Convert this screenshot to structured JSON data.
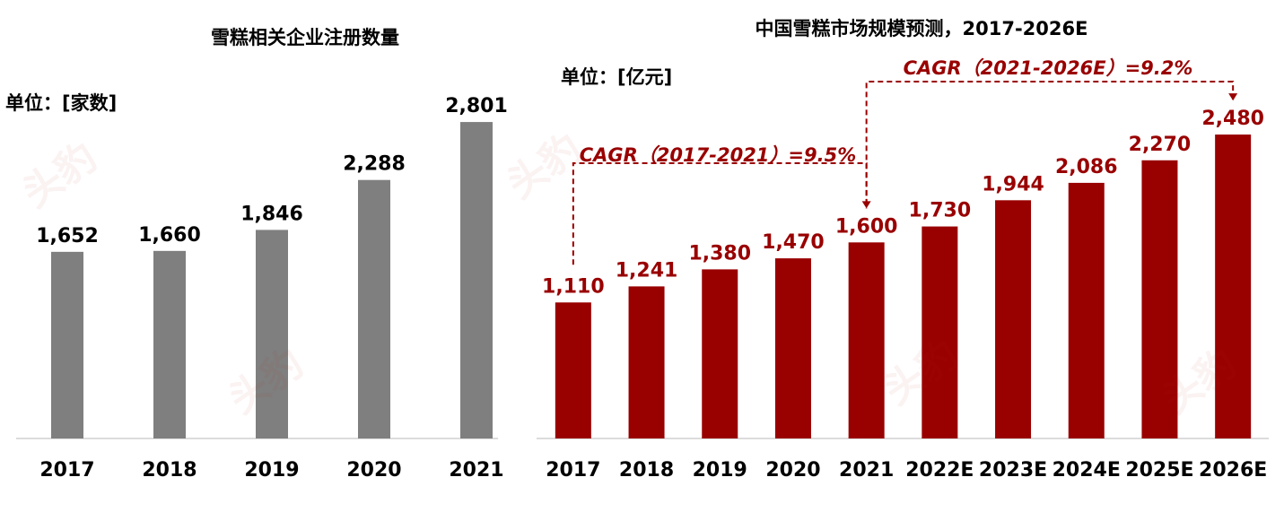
{
  "colors": {
    "left_bar": "#7f7f7f",
    "right_bar": "#990000",
    "right_label": "#990000",
    "text": "#000000",
    "axis": "#d0d0d0"
  },
  "watermark_text": "头豹",
  "chart_data": [
    {
      "type": "bar",
      "title": "雪糕相关企业注册数量",
      "unit_label": "单位：[家数]",
      "categories": [
        "2017",
        "2018",
        "2019",
        "2020",
        "2021"
      ],
      "values": [
        1652,
        1660,
        1846,
        2288,
        2801
      ],
      "value_labels": [
        "1,652",
        "1,660",
        "1,846",
        "2,288",
        "2,801"
      ],
      "ylim": [
        0,
        3000
      ],
      "grid": false,
      "legend": "none"
    },
    {
      "type": "bar",
      "title": "中国雪糕市场规模预测，2017-2026E",
      "unit_label": "单位：[亿元]",
      "categories": [
        "2017",
        "2018",
        "2019",
        "2020",
        "2021",
        "2022E",
        "2023E",
        "2024E",
        "2025E",
        "2026E"
      ],
      "values": [
        1110,
        1241,
        1380,
        1470,
        1600,
        1730,
        1944,
        2086,
        2270,
        2480
      ],
      "value_labels": [
        "1,110",
        "1,241",
        "1,380",
        "1,470",
        "1,600",
        "1,730",
        "1,944",
        "2,086",
        "2,270",
        "2,480"
      ],
      "ylim": [
        0,
        2700
      ],
      "grid": false,
      "legend": "none",
      "annotations": [
        {
          "text": "CAGR（2017-2021）=9.5%",
          "from": "2017",
          "to": "2021"
        },
        {
          "text": "CAGR（2021-2026E）=9.2%",
          "from": "2021",
          "to": "2026E"
        }
      ]
    }
  ]
}
